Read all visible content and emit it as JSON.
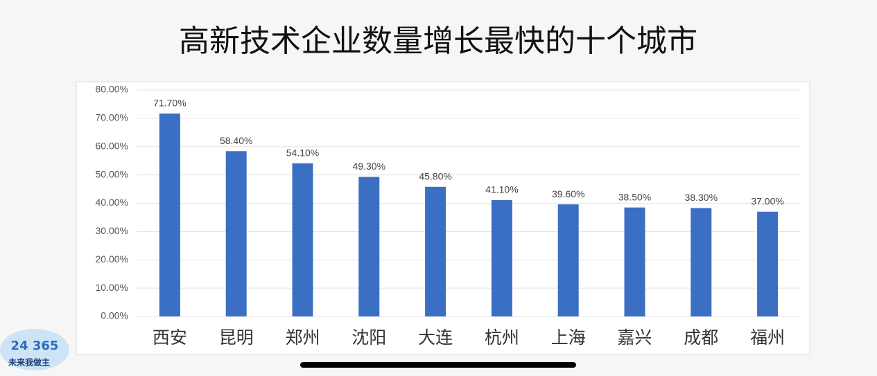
{
  "chart_data": {
    "type": "bar",
    "title": "高新技术企业数量增长最快的十个城市",
    "categories": [
      "西安",
      "昆明",
      "郑州",
      "沈阳",
      "大连",
      "杭州",
      "上海",
      "嘉兴",
      "成都",
      "福州"
    ],
    "values": [
      71.7,
      58.4,
      54.1,
      49.3,
      45.8,
      41.1,
      39.6,
      38.5,
      38.3,
      37.0
    ],
    "value_labels": [
      "71.70%",
      "58.40%",
      "54.10%",
      "49.30%",
      "45.80%",
      "41.10%",
      "39.60%",
      "38.50%",
      "38.30%",
      "37.00%"
    ],
    "color": "#3a6fc4",
    "ylim": [
      0,
      80
    ],
    "yticks": [
      {
        "value": 0,
        "label": "0.00%"
      },
      {
        "value": 10,
        "label": "10.00%"
      },
      {
        "value": 20,
        "label": "20.00%"
      },
      {
        "value": 30,
        "label": "30.00%"
      },
      {
        "value": 40,
        "label": "40.00%"
      },
      {
        "value": 50,
        "label": "50.00%"
      },
      {
        "value": 60,
        "label": "60.00%"
      },
      {
        "value": 70,
        "label": "70.00%"
      },
      {
        "value": 80,
        "label": "80.00%"
      }
    ],
    "grid": true
  },
  "logo": {
    "number": "24 365",
    "slogan": "未来我做主"
  }
}
